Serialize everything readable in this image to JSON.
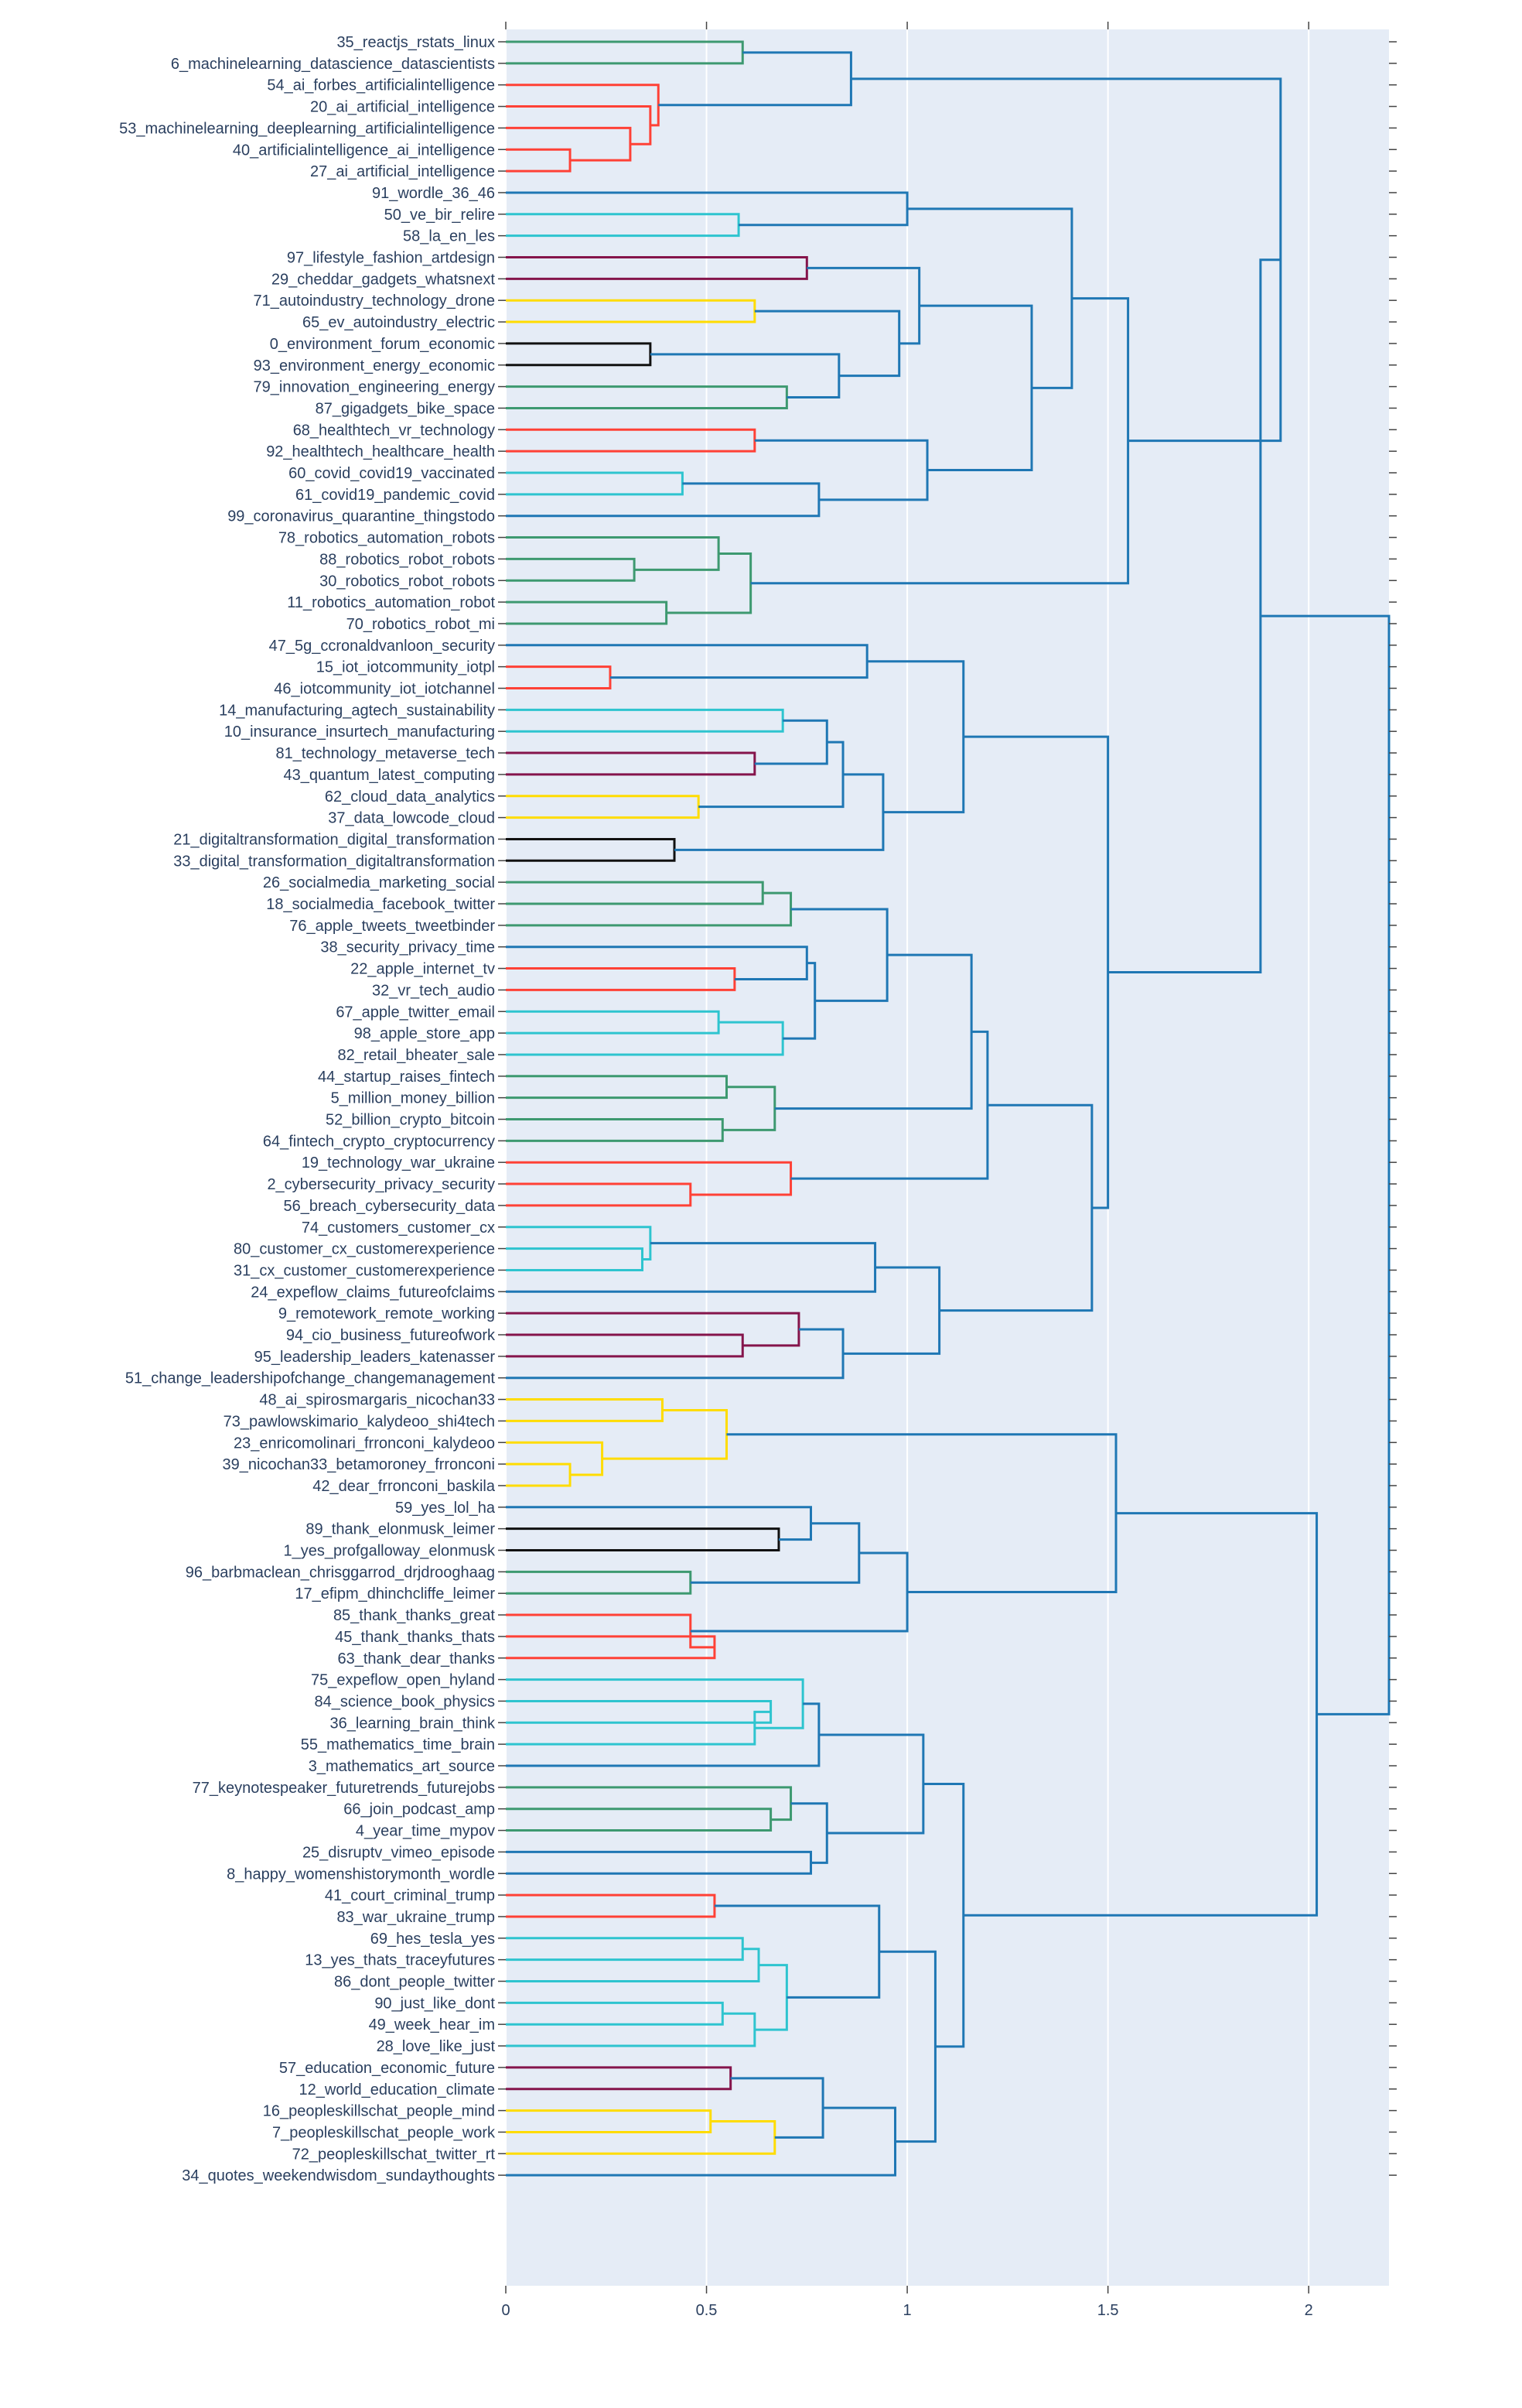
{
  "chart_data": {
    "type": "dendrogram",
    "orientation": "horizontal",
    "title": "",
    "xlabel": "",
    "ylabel": "",
    "xlim": [
      0,
      2.2
    ],
    "x_ticks": [
      0,
      0.5,
      1,
      1.5,
      2
    ],
    "x_tick_labels": [
      "0",
      "0.5",
      "1",
      "1.5",
      "2"
    ],
    "plot_background": "#e5ecf6",
    "palette": {
      "C0": "#1f77b4",
      "C1": "#3d9970",
      "C2": "#ff4136",
      "C3": "#2ec4cf",
      "C4": "#85144b",
      "C5": "#ffdc00",
      "C6": "#111111"
    },
    "leaves": [
      "35_reactjs_rstats_linux",
      "6_machinelearning_datascience_datascientists",
      "54_ai_forbes_artificialintelligence",
      "20_ai_artificial_intelligence",
      "53_machinelearning_deeplearning_artificialintelligence",
      "40_artificialintelligence_ai_intelligence",
      "27_ai_artificial_intelligence",
      "91_wordle_36_46",
      "50_ve_bir_relire",
      "58_la_en_les",
      "97_lifestyle_fashion_artdesign",
      "29_cheddar_gadgets_whatsnext",
      "71_autoindustry_technology_drone",
      "65_ev_autoindustry_electric",
      "0_environment_forum_economic",
      "93_environment_energy_economic",
      "79_innovation_engineering_energy",
      "87_gigadgets_bike_space",
      "68_healthtech_vr_technology",
      "92_healthtech_healthcare_health",
      "60_covid_covid19_vaccinated",
      "61_covid19_pandemic_covid",
      "99_coronavirus_quarantine_thingstodo",
      "78_robotics_automation_robots",
      "88_robotics_robot_robots",
      "30_robotics_robot_robots",
      "11_robotics_automation_robot",
      "70_robotics_robot_mi",
      "47_5g_ccronaldvanloon_security",
      "15_iot_iotcommunity_iotpl",
      "46_iotcommunity_iot_iotchannel",
      "14_manufacturing_agtech_sustainability",
      "10_insurance_insurtech_manufacturing",
      "81_technology_metaverse_tech",
      "43_quantum_latest_computing",
      "62_cloud_data_analytics",
      "37_data_lowcode_cloud",
      "21_digitaltransformation_digital_transformation",
      "33_digital_transformation_digitaltransformation",
      "26_socialmedia_marketing_social",
      "18_socialmedia_facebook_twitter",
      "76_apple_tweets_tweetbinder",
      "38_security_privacy_time",
      "22_apple_internet_tv",
      "32_vr_tech_audio",
      "67_apple_twitter_email",
      "98_apple_store_app",
      "82_retail_bheater_sale",
      "44_startup_raises_fintech",
      "5_million_money_billion",
      "52_billion_crypto_bitcoin",
      "64_fintech_crypto_cryptocurrency",
      "19_technology_war_ukraine",
      "2_cybersecurity_privacy_security",
      "56_breach_cybersecurity_data",
      "74_customers_customer_cx",
      "80_customer_cx_customerexperience",
      "31_cx_customer_customerexperience",
      "24_expeflow_claims_futureofclaims",
      "9_remotework_remote_working",
      "94_cio_business_futureofwork",
      "95_leadership_leaders_katenasser",
      "51_change_leadershipofchange_changemanagement",
      "48_ai_spirosmargaris_nicochan33",
      "73_pawlowskimario_kalydeoo_shi4tech",
      "23_enricomolinari_frronconi_kalydeoo",
      "39_nicochan33_betamoroney_frronconi",
      "42_dear_frronconi_baskila",
      "59_yes_lol_ha",
      "89_thank_elonmusk_leimer",
      "1_yes_profgalloway_elonmusk",
      "96_barbmaclean_chrisggarrod_drjdrooghaag",
      "17_efipm_dhinchcliffe_leimer",
      "85_thank_thanks_great",
      "45_thank_thanks_thats",
      "63_thank_dear_thanks",
      "75_expeflow_open_hyland",
      "84_science_book_physics",
      "36_learning_brain_think",
      "55_mathematics_time_brain",
      "3_mathematics_art_source",
      "77_keynotespeaker_futuretrends_futurejobs",
      "66_join_podcast_amp",
      "4_year_time_mypov",
      "25_disruptv_vimeo_episode",
      "8_happy_womenshistorymonth_wordle",
      "41_court_criminal_trump",
      "83_war_ukraine_trump",
      "69_hes_tesla_yes",
      "13_yes_thats_traceyfutures",
      "86_dont_people_twitter",
      "90_just_like_dont",
      "49_week_hear_im",
      "28_love_like_just",
      "57_education_economic_future",
      "12_world_education_climate",
      "16_peopleskillschat_people_mind",
      "7_peopleskillschat_people_work",
      "72_peopleskillschat_twitter_rt",
      "34_quotes_weekendwisdom_sundaythoughts"
    ],
    "links": [
      {
        "a": "L0",
        "b": "L1",
        "h": 0.59,
        "c": "C1"
      },
      {
        "a": "L5",
        "b": "L6",
        "h": 0.16,
        "c": "C2"
      },
      {
        "a": "L4",
        "b": "n1",
        "h": 0.31,
        "c": "C2"
      },
      {
        "a": "L3",
        "b": "n2",
        "h": 0.36,
        "c": "C2"
      },
      {
        "a": "L2",
        "b": "n3",
        "h": 0.38,
        "c": "C2"
      },
      {
        "a": "n0",
        "b": "n4",
        "h": 0.86,
        "c": "C0"
      },
      {
        "a": "L8",
        "b": "L9",
        "h": 0.58,
        "c": "C3"
      },
      {
        "a": "L7",
        "b": "n6",
        "h": 1.0,
        "c": "C0"
      },
      {
        "a": "L10",
        "b": "L11",
        "h": 0.75,
        "c": "C4"
      },
      {
        "a": "L12",
        "b": "L13",
        "h": 0.62,
        "c": "C5"
      },
      {
        "a": "L14",
        "b": "L15",
        "h": 0.36,
        "c": "C6"
      },
      {
        "a": "L16",
        "b": "L17",
        "h": 0.7,
        "c": "C1"
      },
      {
        "a": "n10",
        "b": "n11",
        "h": 0.83,
        "c": "C0"
      },
      {
        "a": "n9",
        "b": "n12",
        "h": 0.98,
        "c": "C0"
      },
      {
        "a": "n8",
        "b": "n13",
        "h": 1.03,
        "c": "C0"
      },
      {
        "a": "L18",
        "b": "L19",
        "h": 0.62,
        "c": "C2"
      },
      {
        "a": "L20",
        "b": "L21",
        "h": 0.44,
        "c": "C3"
      },
      {
        "a": "n16",
        "b": "L22",
        "h": 0.78,
        "c": "C0"
      },
      {
        "a": "n15",
        "b": "n17",
        "h": 1.05,
        "c": "C0"
      },
      {
        "a": "n14",
        "b": "n18",
        "h": 1.31,
        "c": "C0"
      },
      {
        "a": "n7",
        "b": "n19",
        "h": 1.41,
        "c": "C0"
      },
      {
        "a": "L24",
        "b": "L25",
        "h": 0.32,
        "c": "C1"
      },
      {
        "a": "L23",
        "b": "n21",
        "h": 0.53,
        "c": "C1"
      },
      {
        "a": "L26",
        "b": "L27",
        "h": 0.4,
        "c": "C1"
      },
      {
        "a": "n22",
        "b": "n23",
        "h": 0.61,
        "c": "C1"
      },
      {
        "a": "n20",
        "b": "n24",
        "h": 1.55,
        "c": "C0"
      },
      {
        "a": "n5",
        "b": "n25",
        "h": 1.93,
        "c": "C0"
      },
      {
        "a": "L29",
        "b": "L30",
        "h": 0.26,
        "c": "C2"
      },
      {
        "a": "L28",
        "b": "n27",
        "h": 0.9,
        "c": "C0"
      },
      {
        "a": "L31",
        "b": "L32",
        "h": 0.69,
        "c": "C3"
      },
      {
        "a": "L33",
        "b": "L34",
        "h": 0.62,
        "c": "C4"
      },
      {
        "a": "n29",
        "b": "n30",
        "h": 0.8,
        "c": "C0"
      },
      {
        "a": "L35",
        "b": "L36",
        "h": 0.48,
        "c": "C5"
      },
      {
        "a": "n31",
        "b": "n32",
        "h": 0.84,
        "c": "C0"
      },
      {
        "a": "L37",
        "b": "L38",
        "h": 0.42,
        "c": "C6"
      },
      {
        "a": "n33",
        "b": "n34",
        "h": 0.94,
        "c": "C0"
      },
      {
        "a": "n28",
        "b": "n35",
        "h": 1.14,
        "c": "C0"
      },
      {
        "a": "L39",
        "b": "L40",
        "h": 0.64,
        "c": "C1"
      },
      {
        "a": "n37",
        "b": "L41",
        "h": 0.71,
        "c": "C1"
      },
      {
        "a": "L43",
        "b": "L44",
        "h": 0.57,
        "c": "C2"
      },
      {
        "a": "L42",
        "b": "n39",
        "h": 0.75,
        "c": "C0"
      },
      {
        "a": "L45",
        "b": "L46",
        "h": 0.53,
        "c": "C3"
      },
      {
        "a": "n41",
        "b": "L47",
        "h": 0.69,
        "c": "C3"
      },
      {
        "a": "n40",
        "b": "n42",
        "h": 0.77,
        "c": "C0"
      },
      {
        "a": "n38",
        "b": "n43",
        "h": 0.95,
        "c": "C0"
      },
      {
        "a": "L48",
        "b": "L49",
        "h": 0.55,
        "c": "C1"
      },
      {
        "a": "L50",
        "b": "L51",
        "h": 0.54,
        "c": "C1"
      },
      {
        "a": "n45",
        "b": "n46",
        "h": 0.67,
        "c": "C1"
      },
      {
        "a": "n44",
        "b": "n47",
        "h": 1.16,
        "c": "C0"
      },
      {
        "a": "L53",
        "b": "L54",
        "h": 0.46,
        "c": "C2"
      },
      {
        "a": "L52",
        "b": "n49",
        "h": 0.71,
        "c": "C2"
      },
      {
        "a": "n48",
        "b": "n50",
        "h": 1.2,
        "c": "C0"
      },
      {
        "a": "L56",
        "b": "L57",
        "h": 0.34,
        "c": "C3"
      },
      {
        "a": "L55",
        "b": "n52",
        "h": 0.36,
        "c": "C3"
      },
      {
        "a": "n53",
        "b": "L58",
        "h": 0.92,
        "c": "C0"
      },
      {
        "a": "L60",
        "b": "L61",
        "h": 0.59,
        "c": "C4"
      },
      {
        "a": "L59",
        "b": "n55",
        "h": 0.73,
        "c": "C4"
      },
      {
        "a": "n56",
        "b": "L62",
        "h": 0.84,
        "c": "C0"
      },
      {
        "a": "n54",
        "b": "n57",
        "h": 1.08,
        "c": "C0"
      },
      {
        "a": "n51",
        "b": "n58",
        "h": 1.46,
        "c": "C0"
      },
      {
        "a": "n36",
        "b": "n59",
        "h": 1.5,
        "c": "C0"
      },
      {
        "a": "n26",
        "b": "n60",
        "h": 1.88,
        "c": "C0"
      },
      {
        "a": "L66",
        "b": "L67",
        "h": 0.16,
        "c": "C5"
      },
      {
        "a": "L65",
        "b": "n62",
        "h": 0.24,
        "c": "C5"
      },
      {
        "a": "L63",
        "b": "L64",
        "h": 0.39,
        "c": "C5"
      },
      {
        "a": "n64",
        "b": "n63",
        "h": 0.55,
        "c": "C5"
      },
      {
        "a": "L69",
        "b": "L70",
        "h": 0.68,
        "c": "C6"
      },
      {
        "a": "L68",
        "b": "n66",
        "h": 0.76,
        "c": "C0"
      },
      {
        "a": "L71",
        "b": "L72",
        "h": 0.46,
        "c": "C1"
      },
      {
        "a": "n67",
        "b": "n68",
        "h": 0.88,
        "c": "C0"
      },
      {
        "a": "L74",
        "b": "L75",
        "h": 0.52,
        "c": "C2"
      },
      {
        "a": "L73",
        "b": "n70",
        "h": 0.46,
        "c": "C2"
      },
      {
        "a": "n69",
        "b": "n71",
        "h": 1.0,
        "c": "C0"
      },
      {
        "a": "n65",
        "b": "n72",
        "h": 1.52,
        "c": "C0"
      },
      {
        "a": "L77",
        "b": "L78",
        "h": 0.66,
        "c": "C3"
      },
      {
        "a": "n74",
        "b": "L79",
        "h": 0.62,
        "c": "C3"
      },
      {
        "a": "L76",
        "b": "n75",
        "h": 0.74,
        "c": "C3"
      },
      {
        "a": "n76",
        "b": "L80",
        "h": 0.78,
        "c": "C0"
      },
      {
        "a": "L82",
        "b": "L83",
        "h": 0.66,
        "c": "C1"
      },
      {
        "a": "L81",
        "b": "n78",
        "h": 0.71,
        "c": "C1"
      },
      {
        "a": "L84",
        "b": "L85",
        "h": 0.76,
        "c": "C0"
      },
      {
        "a": "n79",
        "b": "n80",
        "h": 0.8,
        "c": "C0"
      },
      {
        "a": "n77",
        "b": "n81",
        "h": 1.04,
        "c": "C0"
      },
      {
        "a": "L86",
        "b": "L87",
        "h": 0.52,
        "c": "C2"
      },
      {
        "a": "L88",
        "b": "L89",
        "h": 0.59,
        "c": "C3"
      },
      {
        "a": "n84",
        "b": "L90",
        "h": 0.63,
        "c": "C3"
      },
      {
        "a": "L91",
        "b": "L92",
        "h": 0.54,
        "c": "C3"
      },
      {
        "a": "n86",
        "b": "L93",
        "h": 0.62,
        "c": "C3"
      },
      {
        "a": "n85",
        "b": "n87",
        "h": 0.7,
        "c": "C3"
      },
      {
        "a": "n83",
        "b": "n88",
        "h": 0.93,
        "c": "C0"
      },
      {
        "a": "L94",
        "b": "L95",
        "h": 0.56,
        "c": "C4"
      },
      {
        "a": "L96",
        "b": "L97",
        "h": 0.51,
        "c": "C5"
      },
      {
        "a": "n91",
        "b": "L98",
        "h": 0.67,
        "c": "C5"
      },
      {
        "a": "n90",
        "b": "n92",
        "h": 0.79,
        "c": "C0"
      },
      {
        "a": "n93",
        "b": "L99",
        "h": 0.97,
        "c": "C0"
      },
      {
        "a": "n89",
        "b": "n94",
        "h": 1.07,
        "c": "C0"
      },
      {
        "a": "n82",
        "b": "n95",
        "h": 1.14,
        "c": "C0"
      },
      {
        "a": "n73",
        "b": "n96",
        "h": 2.02,
        "c": "C0"
      },
      {
        "a": "n61",
        "b": "n97",
        "h": 2.2,
        "c": "C0"
      }
    ]
  }
}
